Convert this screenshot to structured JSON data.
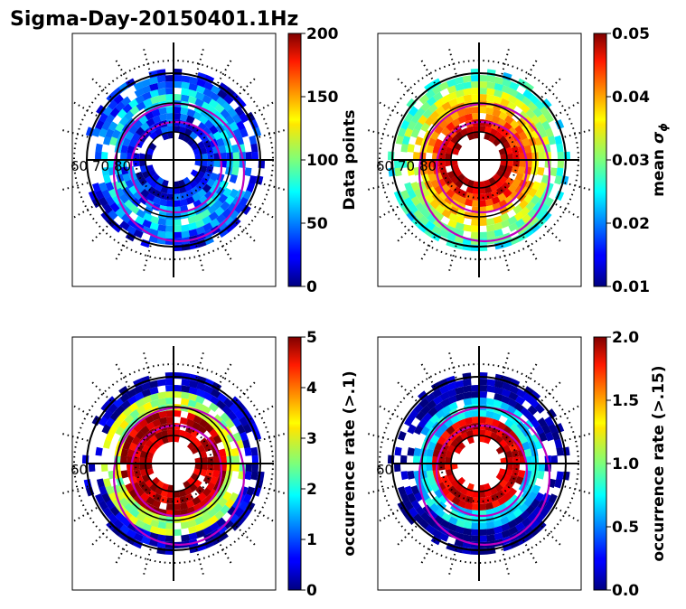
{
  "figure": {
    "title": "Sigma-Day-20150401.1Hz"
  },
  "chart_data": [
    {
      "type": "heatmap",
      "projection": "polar",
      "colormap": "jet",
      "colorbar": {
        "label": "Data points",
        "min": 0,
        "max": 200,
        "ticks": [
          "0",
          "50",
          "100",
          "150",
          "200"
        ]
      },
      "radial_labels": [
        "60",
        "70",
        "80"
      ],
      "contour_color": "#c000c0",
      "dots_color": "#000000"
    },
    {
      "type": "heatmap",
      "projection": "polar",
      "colormap": "jet",
      "colorbar": {
        "label": "mean ",
        "label_symbol": "σ",
        "label_sub": "ϕ",
        "min": 0.01,
        "max": 0.05,
        "ticks": [
          "0.01",
          "0.02",
          "0.03",
          "0.04",
          "0.05"
        ]
      },
      "radial_labels": [
        "60",
        "70",
        "80"
      ],
      "contour_color": "#c000c0",
      "dots_color": "#000000"
    },
    {
      "type": "heatmap",
      "projection": "polar",
      "colormap": "jet",
      "colorbar": {
        "label": "occurrence rate (>.1)",
        "min": 0,
        "max": 5,
        "ticks": [
          "0",
          "1",
          "2",
          "3",
          "4",
          "5"
        ]
      },
      "radial_labels": [
        "60"
      ],
      "contour_color": "#c000c0",
      "dots_color": "#000000"
    },
    {
      "type": "heatmap",
      "projection": "polar",
      "colormap": "jet",
      "colorbar": {
        "label": "occurrence rate (>.15)",
        "min": 0.0,
        "max": 2.0,
        "ticks": [
          "0.0",
          "0.5",
          "1.0",
          "1.5",
          "2.0"
        ]
      },
      "radial_labels": [
        "60"
      ],
      "contour_color": "#c000c0",
      "dots_color": "#000000"
    }
  ]
}
